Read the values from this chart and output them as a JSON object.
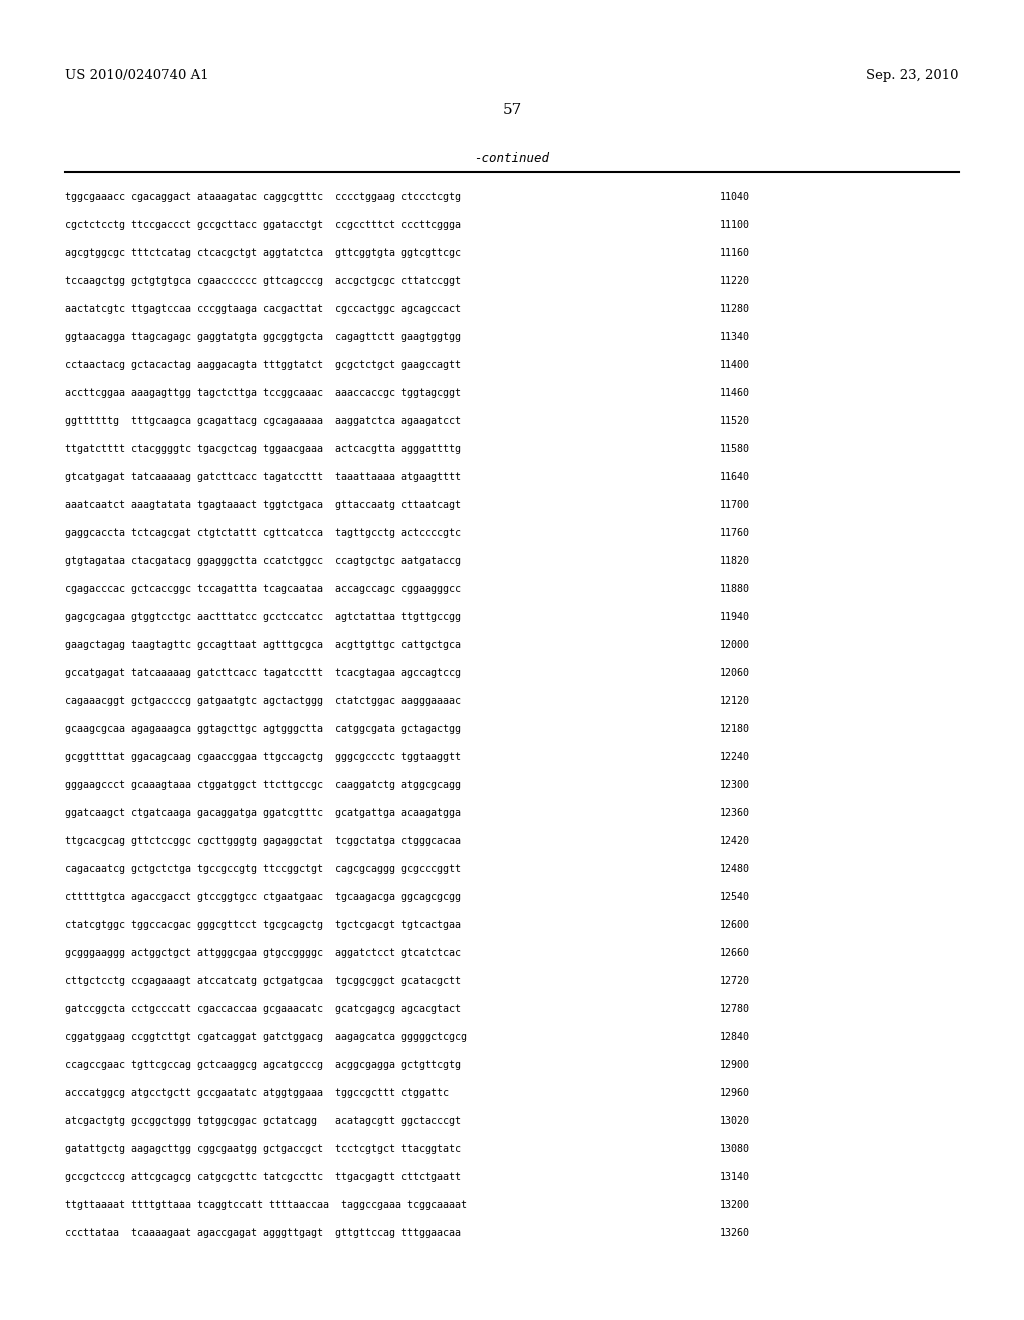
{
  "patent_left": "US 2010/0240740 A1",
  "patent_right": "Sep. 23, 2010",
  "page_number": "57",
  "continued_label": "-continued",
  "background_color": "#ffffff",
  "text_color": "#000000",
  "sequence_lines": [
    [
      "tggcgaaacc cgacaggact ataaagatac caggcgtttc  cccctggaag ctccctcgtg",
      "11040"
    ],
    [
      "cgctctcctg ttccgaccct gccgcttacc ggatacctgt  ccgcctttct cccttcggga",
      "11100"
    ],
    [
      "agcgtggcgc tttctcatag ctcacgctgt aggtatctca  gttcggtgta ggtcgttcgc",
      "11160"
    ],
    [
      "tccaagctgg gctgtgtgca cgaacccccc gttcagcccg  accgctgcgc cttatccggt",
      "11220"
    ],
    [
      "aactatcgtc ttgagtccaa cccggtaaga cacgacttat  cgccactggc agcagccact",
      "11280"
    ],
    [
      "ggtaacagga ttagcagagc gaggtatgta ggcggtgcta  cagagttctt gaagtggtgg",
      "11340"
    ],
    [
      "cctaactacg gctacactag aaggacagta tttggtatct  gcgctctgct gaagccagtt",
      "11400"
    ],
    [
      "accttcggaa aaagagttgg tagctcttga tccggcaaac  aaaccaccgc tggtagcggt",
      "11460"
    ],
    [
      "ggttttttg  tttgcaagca gcagattacg cgcagaaaaa  aaggatctca agaagatcct",
      "11520"
    ],
    [
      "ttgatctttt ctacggggtc tgacgctcag tggaacgaaa  actcacgtta agggattttg",
      "11580"
    ],
    [
      "gtcatgagat tatcaaaaag gatcttcacc tagatccttt  taaattaaaa atgaagtttt",
      "11640"
    ],
    [
      "aaatcaatct aaagtatata tgagtaaact tggtctgaca  gttaccaatg cttaatcagt",
      "11700"
    ],
    [
      "gaggcaccta tctcagcgat ctgtctattt cgttcatcca  tagttgcctg actccccgtc",
      "11760"
    ],
    [
      "gtgtagataa ctacgatacg ggagggctta ccatctggcc  ccagtgctgc aatgataccg",
      "11820"
    ],
    [
      "cgagacccac gctcaccggc tccagattta tcagcaataa  accagccagc cggaagggcc",
      "11880"
    ],
    [
      "gagcgcagaa gtggtcctgc aactttatcc gcctccatcc  agtctattaa ttgttgccgg",
      "11940"
    ],
    [
      "gaagctagag taagtagttc gccagttaat agtttgcgca  acgttgttgc cattgctgca",
      "12000"
    ],
    [
      "gccatgagat tatcaaaaag gatcttcacc tagatccttt  tcacgtagaa agccagtccg",
      "12060"
    ],
    [
      "cagaaacggt gctgaccccg gatgaatgtc agctactggg  ctatctggac aagggaaaac",
      "12120"
    ],
    [
      "gcaagcgcaa agagaaagca ggtagcttgc agtgggctta  catggcgata gctagactgg",
      "12180"
    ],
    [
      "gcggttttat ggacagcaag cgaaccggaa ttgccagctg  gggcgccctc tggtaaggtt",
      "12240"
    ],
    [
      "gggaagccct gcaaagtaaa ctggatggct ttcttgccgc  caaggatctg atggcgcagg",
      "12300"
    ],
    [
      "ggatcaagct ctgatcaaga gacaggatga ggatcgtttc  gcatgattga acaagatgga",
      "12360"
    ],
    [
      "ttgcacgcag gttctccggc cgcttgggtg gagaggctat  tcggctatga ctgggcacaa",
      "12420"
    ],
    [
      "cagacaatcg gctgctctga tgccgccgtg ttccggctgt  cagcgcaggg gcgcccggtt",
      "12480"
    ],
    [
      "ctttttgtca agaccgacct gtccggtgcc ctgaatgaac  tgcaagacga ggcagcgcgg",
      "12540"
    ],
    [
      "ctatcgtggc tggccacgac gggcgttcct tgcgcagctg  tgctcgacgt tgtcactgaa",
      "12600"
    ],
    [
      "gcgggaaggg actggctgct attgggcgaa gtgccggggc  aggatctcct gtcatctcac",
      "12660"
    ],
    [
      "cttgctcctg ccgagaaagt atccatcatg gctgatgcaa  tgcggcggct gcatacgctt",
      "12720"
    ],
    [
      "gatccggcta cctgcccatt cgaccaccaa gcgaaacatc  gcatcgagcg agcacgtact",
      "12780"
    ],
    [
      "cggatggaag ccggtcttgt cgatcaggat gatctggacg  aagagcatca gggggctcgcg",
      "12840"
    ],
    [
      "ccagccgaac tgttcgccag gctcaaggcg agcatgcccg  acggcgagga gctgttcgtg",
      "12900"
    ],
    [
      "acccatggcg atgcctgctt gccgaatatc atggtggaaa  tggccgcttt ctggattc",
      "12960"
    ],
    [
      "atcgactgtg gccggctggg tgtggcggac gctatcagg   acatagcgtt ggctacccgt",
      "13020"
    ],
    [
      "gatattgctg aagagcttgg cggcgaatgg gctgaccgct  tcctcgtgct ttacggtatc",
      "13080"
    ],
    [
      "gccgctcccg attcgcagcg catgcgcttc tatcgccttc  ttgacgagtt cttctgaatt",
      "13140"
    ],
    [
      "ttgttaaaat ttttgttaaa tcaggtccatt ttttaaccaa  taggccgaaa tcggcaaaat",
      "13200"
    ],
    [
      "cccttataa  tcaaaagaat agaccgagat agggttgagt  gttgttccag tttggaacaa",
      "13260"
    ]
  ]
}
